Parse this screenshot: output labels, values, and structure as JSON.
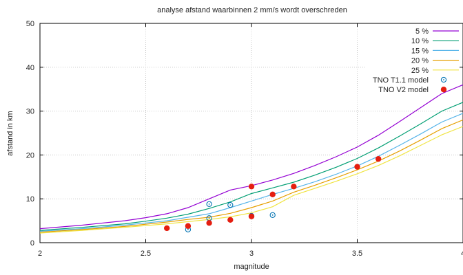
{
  "chart_data": {
    "type": "line",
    "title": "analyse afstand waarbinnen 2 mm/s wordt overschreden",
    "xlabel": "magnitude",
    "ylabel": "afstand in km",
    "xlim": [
      2,
      4
    ],
    "ylim": [
      0,
      50
    ],
    "xticks": [
      2,
      2.5,
      3,
      3.5,
      4
    ],
    "yticks": [
      0,
      10,
      20,
      30,
      40,
      50
    ],
    "xtick_labels": [
      "2",
      "2.5",
      "3",
      "3.5",
      "4"
    ],
    "ytick_labels": [
      "0",
      "10",
      "20",
      "30",
      "40",
      "50"
    ],
    "grid": true,
    "legend_position": "top-right",
    "series": [
      {
        "name": "5 %",
        "kind": "line",
        "color": "#9400d3",
        "x": [
          2.0,
          2.2,
          2.4,
          2.5,
          2.6,
          2.7,
          2.8,
          2.9,
          3.0,
          3.1,
          3.2,
          3.3,
          3.4,
          3.5,
          3.6,
          3.7,
          3.8,
          3.9,
          4.0
        ],
        "y": [
          3.2,
          4.0,
          5.0,
          5.7,
          6.6,
          8.0,
          10.0,
          12.0,
          13.0,
          14.3,
          15.8,
          17.6,
          19.6,
          21.8,
          24.5,
          27.6,
          30.8,
          34.0,
          36.0
        ]
      },
      {
        "name": "10 %",
        "kind": "line",
        "color": "#009e73",
        "x": [
          2.0,
          2.2,
          2.4,
          2.5,
          2.6,
          2.7,
          2.8,
          2.9,
          3.0,
          3.1,
          3.2,
          3.3,
          3.4,
          3.5,
          3.6,
          3.7,
          3.8,
          3.9,
          4.0
        ],
        "y": [
          2.8,
          3.5,
          4.3,
          4.9,
          5.6,
          6.5,
          7.8,
          9.3,
          11.2,
          12.5,
          13.8,
          15.4,
          17.2,
          19.2,
          21.6,
          24.3,
          27.1,
          30.0,
          32.0
        ]
      },
      {
        "name": "15 %",
        "kind": "line",
        "color": "#56b4e9",
        "x": [
          2.0,
          2.2,
          2.4,
          2.5,
          2.6,
          2.7,
          2.8,
          2.9,
          3.0,
          3.1,
          3.2,
          3.3,
          3.4,
          3.5,
          3.6,
          3.7,
          3.8,
          3.9,
          4.0
        ],
        "y": [
          2.6,
          3.2,
          4.0,
          4.5,
          5.0,
          5.8,
          6.6,
          8.0,
          9.5,
          11.0,
          12.4,
          13.9,
          15.6,
          17.5,
          19.7,
          22.2,
          24.8,
          27.5,
          29.5
        ]
      },
      {
        "name": "20 %",
        "kind": "line",
        "color": "#e69f00",
        "x": [
          2.0,
          2.2,
          2.4,
          2.5,
          2.6,
          2.7,
          2.8,
          2.9,
          3.0,
          3.1,
          3.2,
          3.3,
          3.4,
          3.5,
          3.6,
          3.7,
          3.8,
          3.9,
          4.0
        ],
        "y": [
          2.4,
          3.0,
          3.7,
          4.2,
          4.7,
          5.3,
          5.8,
          6.7,
          8.0,
          9.5,
          11.5,
          13.1,
          14.8,
          16.6,
          18.6,
          20.9,
          23.4,
          26.0,
          28.0
        ]
      },
      {
        "name": "25 %",
        "kind": "line",
        "color": "#f0e442",
        "x": [
          2.0,
          2.2,
          2.4,
          2.5,
          2.6,
          2.7,
          2.8,
          2.9,
          3.0,
          3.1,
          3.2,
          3.3,
          3.4,
          3.5,
          3.6,
          3.7,
          3.8,
          3.9,
          4.0
        ],
        "y": [
          2.2,
          2.8,
          3.5,
          3.9,
          4.3,
          4.8,
          5.3,
          5.9,
          6.8,
          8.2,
          10.8,
          12.4,
          14.0,
          15.7,
          17.6,
          19.8,
          22.2,
          24.6,
          26.5
        ]
      },
      {
        "name": "TNO T1.1 model",
        "kind": "scatter-open",
        "color": "#0072b2",
        "x": [
          2.7,
          2.8,
          2.8,
          2.9,
          3.0,
          3.1
        ],
        "y": [
          3.0,
          8.8,
          5.6,
          8.6,
          6.1,
          6.3
        ]
      },
      {
        "name": "TNO V2 model",
        "kind": "scatter-filled",
        "color": "#e51e10",
        "x": [
          2.6,
          2.7,
          2.8,
          2.9,
          3.0,
          3.0,
          3.1,
          3.2,
          3.5,
          3.6
        ],
        "y": [
          3.3,
          3.8,
          4.5,
          5.2,
          6.0,
          12.8,
          11.0,
          12.8,
          17.3,
          19.1
        ]
      }
    ]
  }
}
